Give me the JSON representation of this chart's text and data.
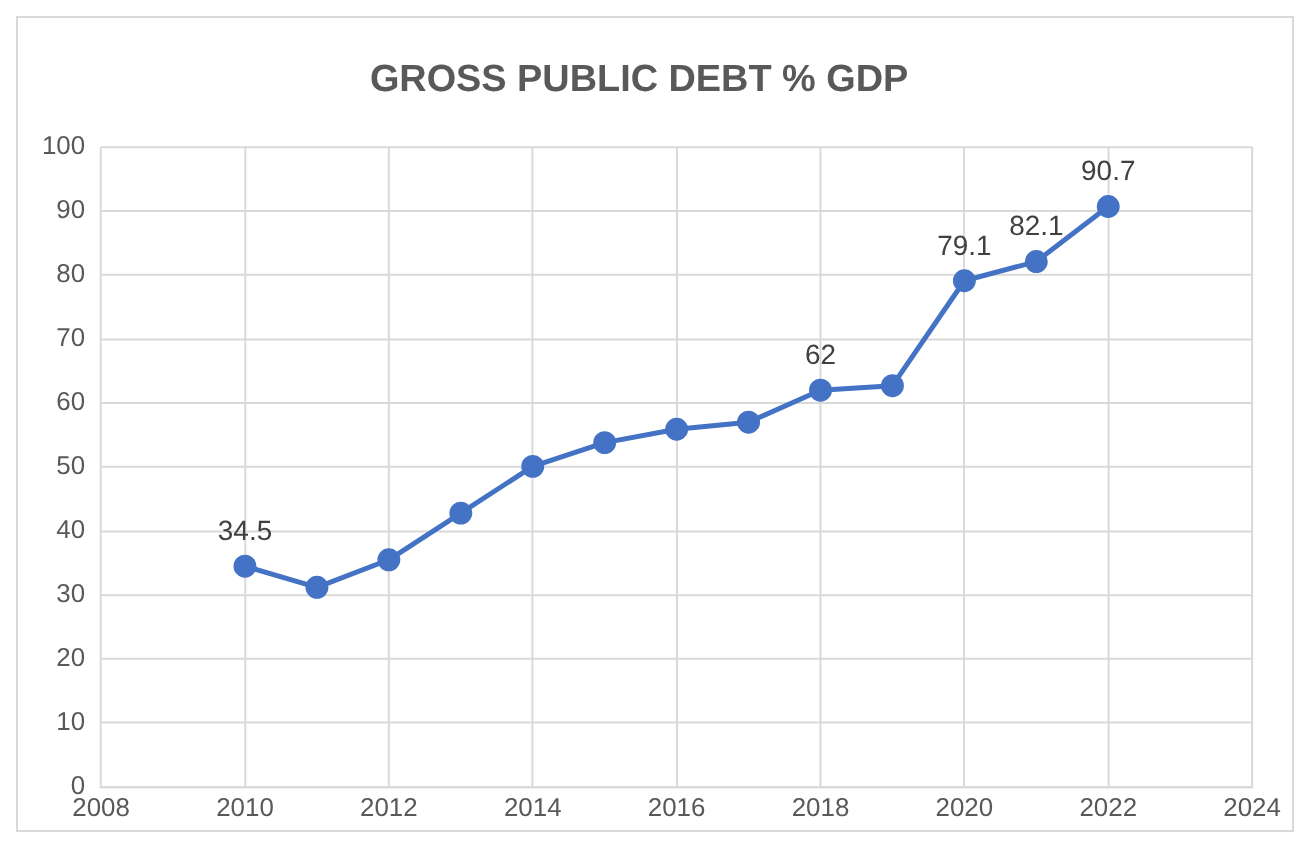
{
  "chart_data": {
    "type": "line",
    "title": "GROSS PUBLIC DEBT % GDP",
    "x": [
      2010,
      2011,
      2012,
      2013,
      2014,
      2015,
      2016,
      2017,
      2018,
      2019,
      2020,
      2021,
      2022
    ],
    "series": [
      {
        "color": "#4472c4",
        "values": [
          34.5,
          31.2,
          35.5,
          42.8,
          50.1,
          53.8,
          55.9,
          57,
          62,
          62.7,
          79.1,
          82.1,
          90.7
        ],
        "value_labels": [
          "34.5",
          null,
          null,
          null,
          null,
          null,
          null,
          null,
          "62",
          null,
          "79.1",
          "82.1",
          "90.7"
        ]
      }
    ],
    "xlim": [
      2008,
      2024
    ],
    "xticks": [
      2008,
      2010,
      2012,
      2014,
      2016,
      2018,
      2020,
      2022,
      2024
    ],
    "ylim": [
      0,
      100
    ],
    "yticks": [
      0,
      10,
      20,
      30,
      40,
      50,
      60,
      70,
      80,
      90,
      100
    ],
    "grid": true,
    "marker": "circle",
    "line_style": "solid",
    "legend": false
  }
}
